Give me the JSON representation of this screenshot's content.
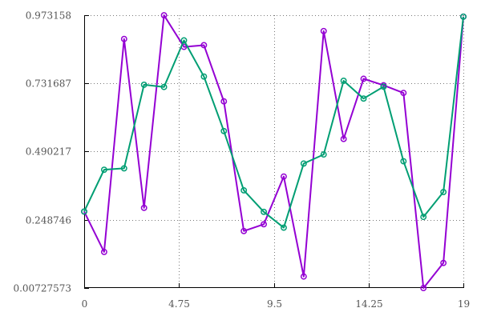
{
  "chart_data": {
    "type": "line",
    "title": "",
    "xlabel": "",
    "ylabel": "",
    "xlim": [
      0,
      19
    ],
    "ylim": [
      0.00727573,
      0.973158
    ],
    "x_ticks": [
      "0",
      "4.75",
      "9.5",
      "14.25",
      "19"
    ],
    "x_tick_values": [
      0,
      4.75,
      9.5,
      14.25,
      19
    ],
    "y_ticks": [
      "0.00727573",
      "0.248746",
      "0.490217",
      "0.731687",
      "0.973158"
    ],
    "y_tick_values": [
      0.00727573,
      0.248746,
      0.490217,
      0.731687,
      0.973158
    ],
    "grid": true,
    "legend": "none",
    "x": [
      0,
      1,
      2,
      3,
      4,
      5,
      6,
      7,
      8,
      9,
      10,
      11,
      12,
      13,
      14,
      15,
      16,
      17,
      18,
      19
    ],
    "series": [
      {
        "color": "#9400d3",
        "values": [
          0.278,
          0.135,
          0.889,
          0.291,
          0.973,
          0.861,
          0.867,
          0.668,
          0.209,
          0.233,
          0.402,
          0.048,
          0.917,
          0.535,
          0.748,
          0.725,
          0.698,
          0.007,
          0.096,
          0.968
        ]
      },
      {
        "color": "#009e73",
        "values": [
          0.278,
          0.426,
          0.431,
          0.727,
          0.719,
          0.884,
          0.756,
          0.563,
          0.353,
          0.277,
          0.221,
          0.448,
          0.48,
          0.741,
          0.678,
          0.72,
          0.456,
          0.259,
          0.347,
          0.968
        ]
      }
    ]
  }
}
